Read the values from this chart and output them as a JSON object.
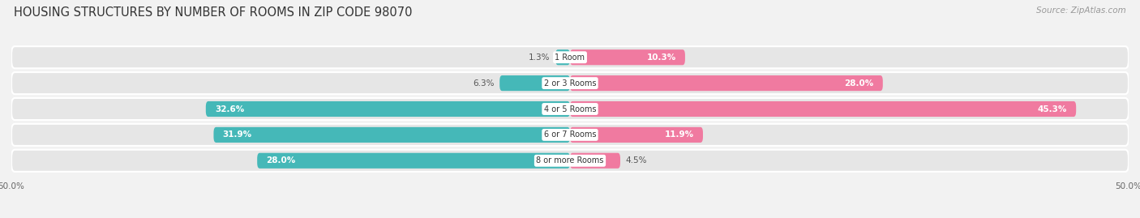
{
  "title": "HOUSING STRUCTURES BY NUMBER OF ROOMS IN ZIP CODE 98070",
  "source": "Source: ZipAtlas.com",
  "categories": [
    "1 Room",
    "2 or 3 Rooms",
    "4 or 5 Rooms",
    "6 or 7 Rooms",
    "8 or more Rooms"
  ],
  "owner_values": [
    1.3,
    6.3,
    32.6,
    31.9,
    28.0
  ],
  "renter_values": [
    10.3,
    28.0,
    45.3,
    11.9,
    4.5
  ],
  "owner_color": "#45B8B8",
  "renter_color": "#F07AA0",
  "background_color": "#F2F2F2",
  "row_bg_color": "#E6E6E6",
  "xlim": 50.0,
  "bar_height": 0.6,
  "title_fontsize": 10.5,
  "source_fontsize": 7.5,
  "label_fontsize": 7.5,
  "category_fontsize": 7.0,
  "legend_fontsize": 7.5,
  "axis_label_fontsize": 7.5,
  "owner_threshold": 10.0,
  "renter_threshold": 10.0
}
